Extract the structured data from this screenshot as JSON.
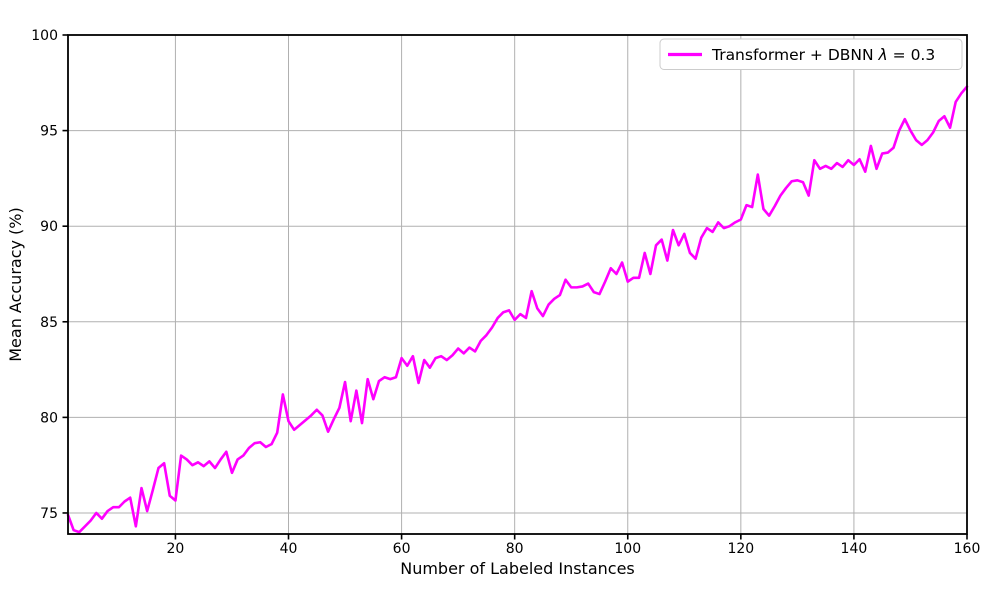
{
  "figure": {
    "background": "#ffffff",
    "spine_color": "#000000",
    "tick_color": "#000000"
  },
  "chart_data": {
    "type": "line",
    "title": "",
    "xlabel": "Number of Labeled Instances",
    "ylabel": "Mean Accuracy (%)",
    "xlim": [
      1,
      160
    ],
    "ylim": [
      73.9,
      100
    ],
    "xticks": [
      20,
      40,
      60,
      80,
      100,
      120,
      140,
      160
    ],
    "yticks": [
      75,
      80,
      85,
      90,
      95,
      100
    ],
    "grid": true,
    "grid_color": "#b0b0b0",
    "legend": {
      "position": "upper right",
      "text_prefix": "Transformer + DBNN ",
      "lambda_symbol": "λ",
      "text_suffix": " = 0.3",
      "full_label": "Transformer + DBNN λ = 0.3",
      "border_color": "#cccccc",
      "background": "#ffffff"
    },
    "series": [
      {
        "name": "Transformer + DBNN λ = 0.3",
        "color": "#ff00ff",
        "line_width": 2.6,
        "x_start": 1,
        "x_step": 1,
        "y": [
          74.9,
          74.1,
          74.0,
          74.3,
          74.6,
          75.0,
          74.7,
          75.1,
          75.3,
          75.3,
          75.6,
          75.8,
          74.3,
          76.3,
          75.1,
          76.2,
          77.35,
          77.6,
          75.9,
          75.65,
          78.0,
          77.8,
          77.5,
          77.65,
          77.45,
          77.7,
          77.35,
          77.8,
          78.2,
          77.1,
          77.8,
          78.0,
          78.4,
          78.65,
          78.7,
          78.45,
          78.6,
          79.2,
          81.2,
          79.8,
          79.35,
          79.6,
          79.85,
          80.1,
          80.4,
          80.1,
          79.25,
          79.9,
          80.5,
          81.85,
          79.8,
          81.4,
          79.7,
          82.0,
          80.95,
          81.9,
          82.1,
          82.0,
          82.1,
          83.1,
          82.7,
          83.2,
          81.8,
          83.0,
          82.6,
          83.1,
          83.2,
          83.0,
          83.25,
          83.6,
          83.35,
          83.65,
          83.45,
          84.0,
          84.3,
          84.7,
          85.2,
          85.5,
          85.6,
          85.1,
          85.4,
          85.2,
          86.6,
          85.7,
          85.3,
          85.9,
          86.2,
          86.4,
          87.2,
          86.8,
          86.8,
          86.85,
          87.0,
          86.55,
          86.45,
          87.1,
          87.8,
          87.5,
          88.1,
          87.1,
          87.3,
          87.3,
          88.6,
          87.5,
          89.0,
          89.3,
          88.2,
          89.8,
          89.0,
          89.6,
          88.6,
          88.3,
          89.4,
          89.9,
          89.7,
          90.2,
          89.9,
          90.0,
          90.2,
          90.35,
          91.1,
          91.0,
          92.7,
          90.9,
          90.55,
          91.05,
          91.6,
          92.0,
          92.35,
          92.4,
          92.3,
          91.6,
          93.45,
          93.0,
          93.15,
          93.0,
          93.3,
          93.1,
          93.45,
          93.2,
          93.5,
          92.85,
          94.2,
          93.0,
          93.8,
          93.85,
          94.1,
          95.0,
          95.6,
          95.0,
          94.5,
          94.25,
          94.5,
          94.9,
          95.5,
          95.75,
          95.15,
          96.5,
          96.95,
          97.3
        ]
      }
    ]
  }
}
